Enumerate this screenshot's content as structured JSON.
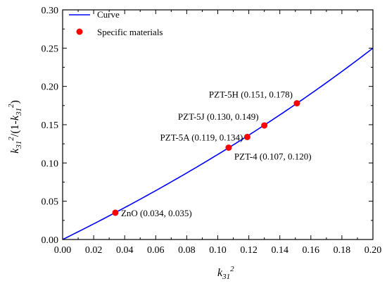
{
  "chart_data": {
    "type": "scatter",
    "title": "",
    "xlabel": {
      "base": "k",
      "sub": "31",
      "sup": "2"
    },
    "ylabel": {
      "parts": [
        {
          "t": "k",
          "style": "italic"
        },
        {
          "t": "31",
          "style": "sub"
        },
        {
          "t": "2",
          "style": "sup"
        },
        {
          "t": "/(1-",
          "style": "normal"
        },
        {
          "t": "k",
          "style": "italic"
        },
        {
          "t": "31",
          "style": "sub"
        },
        {
          "t": "2",
          "style": "sup"
        },
        {
          "t": ")",
          "style": "normal"
        }
      ]
    },
    "xlim": [
      0.0,
      0.2
    ],
    "ylim": [
      0.0,
      0.3
    ],
    "xticks": [
      "0.00",
      "0.02",
      "0.04",
      "0.06",
      "0.08",
      "0.10",
      "0.12",
      "0.14",
      "0.16",
      "0.18",
      "0.20"
    ],
    "yticks": [
      "0.00",
      "0.05",
      "0.10",
      "0.15",
      "0.20",
      "0.25",
      "0.30"
    ],
    "legend_position": "top-left",
    "series": [
      {
        "name": "Curve",
        "kind": "line",
        "color": "#0000ff",
        "function": "x/(1-x)",
        "x_range": [
          0.0,
          0.2
        ]
      },
      {
        "name": "Specific materials",
        "kind": "scatter",
        "color": "#ff0000",
        "points": [
          {
            "label": "ZnO (0.034, 0.035)",
            "x": 0.034,
            "y": 0.035
          },
          {
            "label": "PZT-4 (0.107, 0.120)",
            "x": 0.107,
            "y": 0.12
          },
          {
            "label": "PZT-5A (0.119, 0.134)",
            "x": 0.119,
            "y": 0.134
          },
          {
            "label": "PZT-5J (0.130, 0.149)",
            "x": 0.13,
            "y": 0.149
          },
          {
            "label": "PZT-5H (0.151, 0.178)",
            "x": 0.151,
            "y": 0.178
          }
        ]
      }
    ]
  }
}
